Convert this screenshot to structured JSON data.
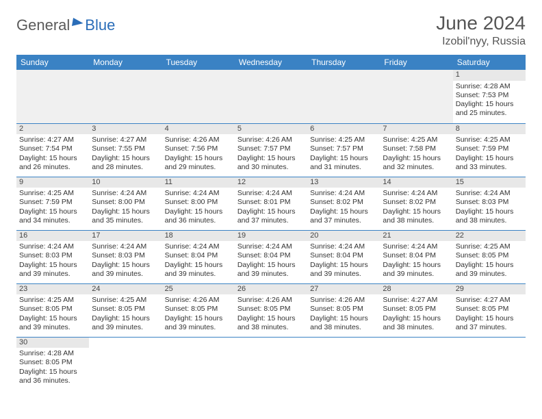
{
  "logo": {
    "part1": "General",
    "part2": "Blue"
  },
  "title": "June 2024",
  "location": "Izobil'nyy, Russia",
  "colors": {
    "header_bg": "#3a82c4",
    "header_text": "#ffffff",
    "daynum_bg": "#e8e8e8",
    "border": "#3a82c4",
    "logo_gray": "#5a5a5a",
    "logo_blue": "#2a6db8"
  },
  "weekdays": [
    "Sunday",
    "Monday",
    "Tuesday",
    "Wednesday",
    "Thursday",
    "Friday",
    "Saturday"
  ],
  "cells": [
    [
      null,
      null,
      null,
      null,
      null,
      null,
      {
        "n": "1",
        "sr": "4:28 AM",
        "ss": "7:53 PM",
        "dl": "15 hours and 25 minutes."
      }
    ],
    [
      {
        "n": "2",
        "sr": "4:27 AM",
        "ss": "7:54 PM",
        "dl": "15 hours and 26 minutes."
      },
      {
        "n": "3",
        "sr": "4:27 AM",
        "ss": "7:55 PM",
        "dl": "15 hours and 28 minutes."
      },
      {
        "n": "4",
        "sr": "4:26 AM",
        "ss": "7:56 PM",
        "dl": "15 hours and 29 minutes."
      },
      {
        "n": "5",
        "sr": "4:26 AM",
        "ss": "7:57 PM",
        "dl": "15 hours and 30 minutes."
      },
      {
        "n": "6",
        "sr": "4:25 AM",
        "ss": "7:57 PM",
        "dl": "15 hours and 31 minutes."
      },
      {
        "n": "7",
        "sr": "4:25 AM",
        "ss": "7:58 PM",
        "dl": "15 hours and 32 minutes."
      },
      {
        "n": "8",
        "sr": "4:25 AM",
        "ss": "7:59 PM",
        "dl": "15 hours and 33 minutes."
      }
    ],
    [
      {
        "n": "9",
        "sr": "4:25 AM",
        "ss": "7:59 PM",
        "dl": "15 hours and 34 minutes."
      },
      {
        "n": "10",
        "sr": "4:24 AM",
        "ss": "8:00 PM",
        "dl": "15 hours and 35 minutes."
      },
      {
        "n": "11",
        "sr": "4:24 AM",
        "ss": "8:00 PM",
        "dl": "15 hours and 36 minutes."
      },
      {
        "n": "12",
        "sr": "4:24 AM",
        "ss": "8:01 PM",
        "dl": "15 hours and 37 minutes."
      },
      {
        "n": "13",
        "sr": "4:24 AM",
        "ss": "8:02 PM",
        "dl": "15 hours and 37 minutes."
      },
      {
        "n": "14",
        "sr": "4:24 AM",
        "ss": "8:02 PM",
        "dl": "15 hours and 38 minutes."
      },
      {
        "n": "15",
        "sr": "4:24 AM",
        "ss": "8:03 PM",
        "dl": "15 hours and 38 minutes."
      }
    ],
    [
      {
        "n": "16",
        "sr": "4:24 AM",
        "ss": "8:03 PM",
        "dl": "15 hours and 39 minutes."
      },
      {
        "n": "17",
        "sr": "4:24 AM",
        "ss": "8:03 PM",
        "dl": "15 hours and 39 minutes."
      },
      {
        "n": "18",
        "sr": "4:24 AM",
        "ss": "8:04 PM",
        "dl": "15 hours and 39 minutes."
      },
      {
        "n": "19",
        "sr": "4:24 AM",
        "ss": "8:04 PM",
        "dl": "15 hours and 39 minutes."
      },
      {
        "n": "20",
        "sr": "4:24 AM",
        "ss": "8:04 PM",
        "dl": "15 hours and 39 minutes."
      },
      {
        "n": "21",
        "sr": "4:24 AM",
        "ss": "8:04 PM",
        "dl": "15 hours and 39 minutes."
      },
      {
        "n": "22",
        "sr": "4:25 AM",
        "ss": "8:05 PM",
        "dl": "15 hours and 39 minutes."
      }
    ],
    [
      {
        "n": "23",
        "sr": "4:25 AM",
        "ss": "8:05 PM",
        "dl": "15 hours and 39 minutes."
      },
      {
        "n": "24",
        "sr": "4:25 AM",
        "ss": "8:05 PM",
        "dl": "15 hours and 39 minutes."
      },
      {
        "n": "25",
        "sr": "4:26 AM",
        "ss": "8:05 PM",
        "dl": "15 hours and 39 minutes."
      },
      {
        "n": "26",
        "sr": "4:26 AM",
        "ss": "8:05 PM",
        "dl": "15 hours and 38 minutes."
      },
      {
        "n": "27",
        "sr": "4:26 AM",
        "ss": "8:05 PM",
        "dl": "15 hours and 38 minutes."
      },
      {
        "n": "28",
        "sr": "4:27 AM",
        "ss": "8:05 PM",
        "dl": "15 hours and 38 minutes."
      },
      {
        "n": "29",
        "sr": "4:27 AM",
        "ss": "8:05 PM",
        "dl": "15 hours and 37 minutes."
      }
    ],
    [
      {
        "n": "30",
        "sr": "4:28 AM",
        "ss": "8:05 PM",
        "dl": "15 hours and 36 minutes."
      },
      null,
      null,
      null,
      null,
      null,
      null
    ]
  ],
  "labels": {
    "sunrise": "Sunrise:",
    "sunset": "Sunset:",
    "daylight": "Daylight:"
  }
}
